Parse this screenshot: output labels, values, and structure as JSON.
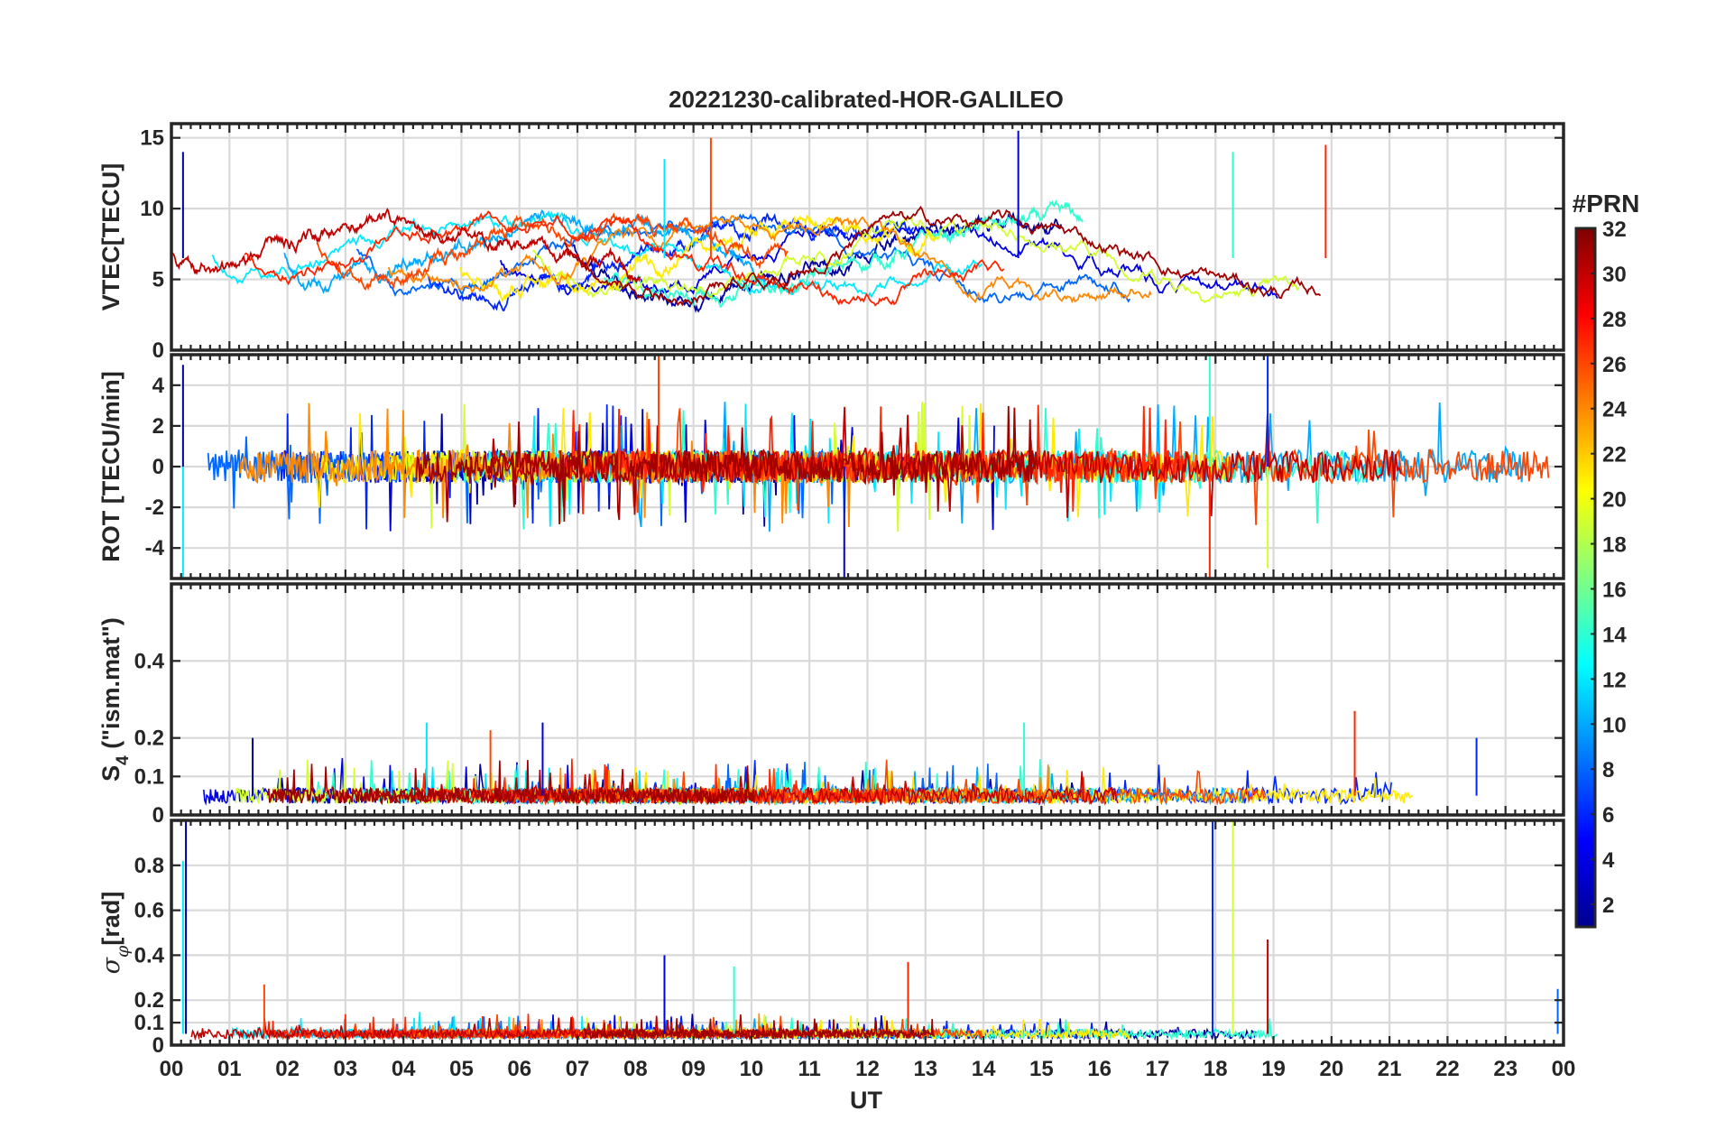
{
  "chart_data": [
    {
      "type": "line",
      "title": "20221230-calibrated-HOR-GALILEO",
      "ylabel": "VTEC[TECU]",
      "ylim": [
        0,
        16
      ],
      "yticks": [
        0,
        5,
        10,
        15
      ],
      "ytick_labels": [
        "0",
        "5",
        "10",
        "15"
      ],
      "grid": true,
      "baseline": 6.5,
      "scatter": 1.5,
      "features": [
        {
          "t": 0.2,
          "value": 14
        },
        {
          "t": 8.5,
          "value": 13.5
        },
        {
          "t": 9.3,
          "value": 15
        },
        {
          "t": 14.6,
          "value": 15.5
        },
        {
          "t": 18.3,
          "value": 14
        },
        {
          "t": 19.9,
          "value": 14.5
        }
      ]
    },
    {
      "type": "line",
      "ylabel": "ROT [TECU/min]",
      "ylim": [
        -5.5,
        5.5
      ],
      "yticks": [
        -4,
        -2,
        0,
        2,
        4
      ],
      "ytick_labels": [
        "-4",
        "-2",
        "0",
        "2",
        "4"
      ],
      "grid": true,
      "baseline": 0,
      "scatter": 0.8,
      "features": [
        {
          "t": 0.2,
          "value": 5
        },
        {
          "t": 0.2,
          "value": -5.5
        },
        {
          "t": 8.4,
          "value": 5.5
        },
        {
          "t": 11.6,
          "value": -5.5
        },
        {
          "t": 17.9,
          "value": 5.5
        },
        {
          "t": 17.9,
          "value": -5.5
        },
        {
          "t": 18.9,
          "value": 5.5
        },
        {
          "t": 18.9,
          "value": -5
        }
      ]
    },
    {
      "type": "line",
      "ylabel_main": "S",
      "ylabel_sub": "4",
      "ylabel_rest": " (\"ism.mat\")",
      "ylim": [
        0,
        0.6
      ],
      "yticks": [
        0,
        0.1,
        0.2,
        0.4
      ],
      "ytick_labels": [
        "0",
        "0.1",
        "0.2",
        "0.4"
      ],
      "grid": true,
      "baseline": 0.05,
      "scatter": 0.02,
      "features": [
        {
          "t": 1.4,
          "value": 0.2
        },
        {
          "t": 4.4,
          "value": 0.24
        },
        {
          "t": 5.5,
          "value": 0.22
        },
        {
          "t": 6.4,
          "value": 0.24
        },
        {
          "t": 14.7,
          "value": 0.24
        },
        {
          "t": 20.4,
          "value": 0.27
        },
        {
          "t": 22.5,
          "value": 0.2
        }
      ]
    },
    {
      "type": "line",
      "ylabel_main": "σ",
      "ylabel_sub": "φ",
      "ylabel_rest": "[rad]",
      "ylim": [
        0,
        1
      ],
      "yticks": [
        0,
        0.1,
        0.2,
        0.4,
        0.6,
        0.8
      ],
      "ytick_labels": [
        "0",
        "0.1",
        "0.2",
        "0.4",
        "0.6",
        "0.8"
      ],
      "grid": true,
      "baseline": 0.05,
      "scatter": 0.02,
      "features": [
        {
          "t": 0.25,
          "value": 1.0
        },
        {
          "t": 0.2,
          "value": 0.82
        },
        {
          "t": 1.6,
          "value": 0.27
        },
        {
          "t": 8.5,
          "value": 0.4
        },
        {
          "t": 9.7,
          "value": 0.35
        },
        {
          "t": 12.7,
          "value": 0.37
        },
        {
          "t": 17.95,
          "value": 1.0
        },
        {
          "t": 18.3,
          "value": 1.0
        },
        {
          "t": 18.9,
          "value": 0.47
        },
        {
          "t": 23.9,
          "value": 0.25
        }
      ]
    }
  ],
  "x_axis": {
    "label": "UT",
    "ticks": [
      "00",
      "01",
      "02",
      "03",
      "04",
      "05",
      "06",
      "07",
      "08",
      "09",
      "10",
      "11",
      "12",
      "13",
      "14",
      "15",
      "16",
      "17",
      "18",
      "19",
      "20",
      "21",
      "22",
      "23",
      "00"
    ],
    "range": [
      0,
      24
    ]
  },
  "colorbar": {
    "title": "#PRN",
    "range": [
      1,
      32
    ],
    "ticks": [
      2,
      4,
      6,
      8,
      10,
      12,
      14,
      16,
      18,
      20,
      22,
      24,
      26,
      28,
      30,
      32
    ],
    "tick_labels": [
      "2",
      "4",
      "6",
      "8",
      "10",
      "12",
      "14",
      "16",
      "18",
      "20",
      "22",
      "24",
      "26",
      "28",
      "30",
      "32"
    ],
    "colormap": "jet",
    "colors": [
      "#00008f",
      "#0000ff",
      "#0080ff",
      "#00ffff",
      "#80ff80",
      "#ffff00",
      "#ff8000",
      "#ff0000",
      "#800000"
    ]
  },
  "satellites": [
    {
      "prn": 2
    },
    {
      "prn": 4
    },
    {
      "prn": 6
    },
    {
      "prn": 8
    },
    {
      "prn": 10
    },
    {
      "prn": 12
    },
    {
      "prn": 14
    },
    {
      "prn": 19
    },
    {
      "prn": 21
    },
    {
      "prn": 24
    },
    {
      "prn": 26
    },
    {
      "prn": 27
    },
    {
      "prn": 30
    },
    {
      "prn": 31
    }
  ]
}
